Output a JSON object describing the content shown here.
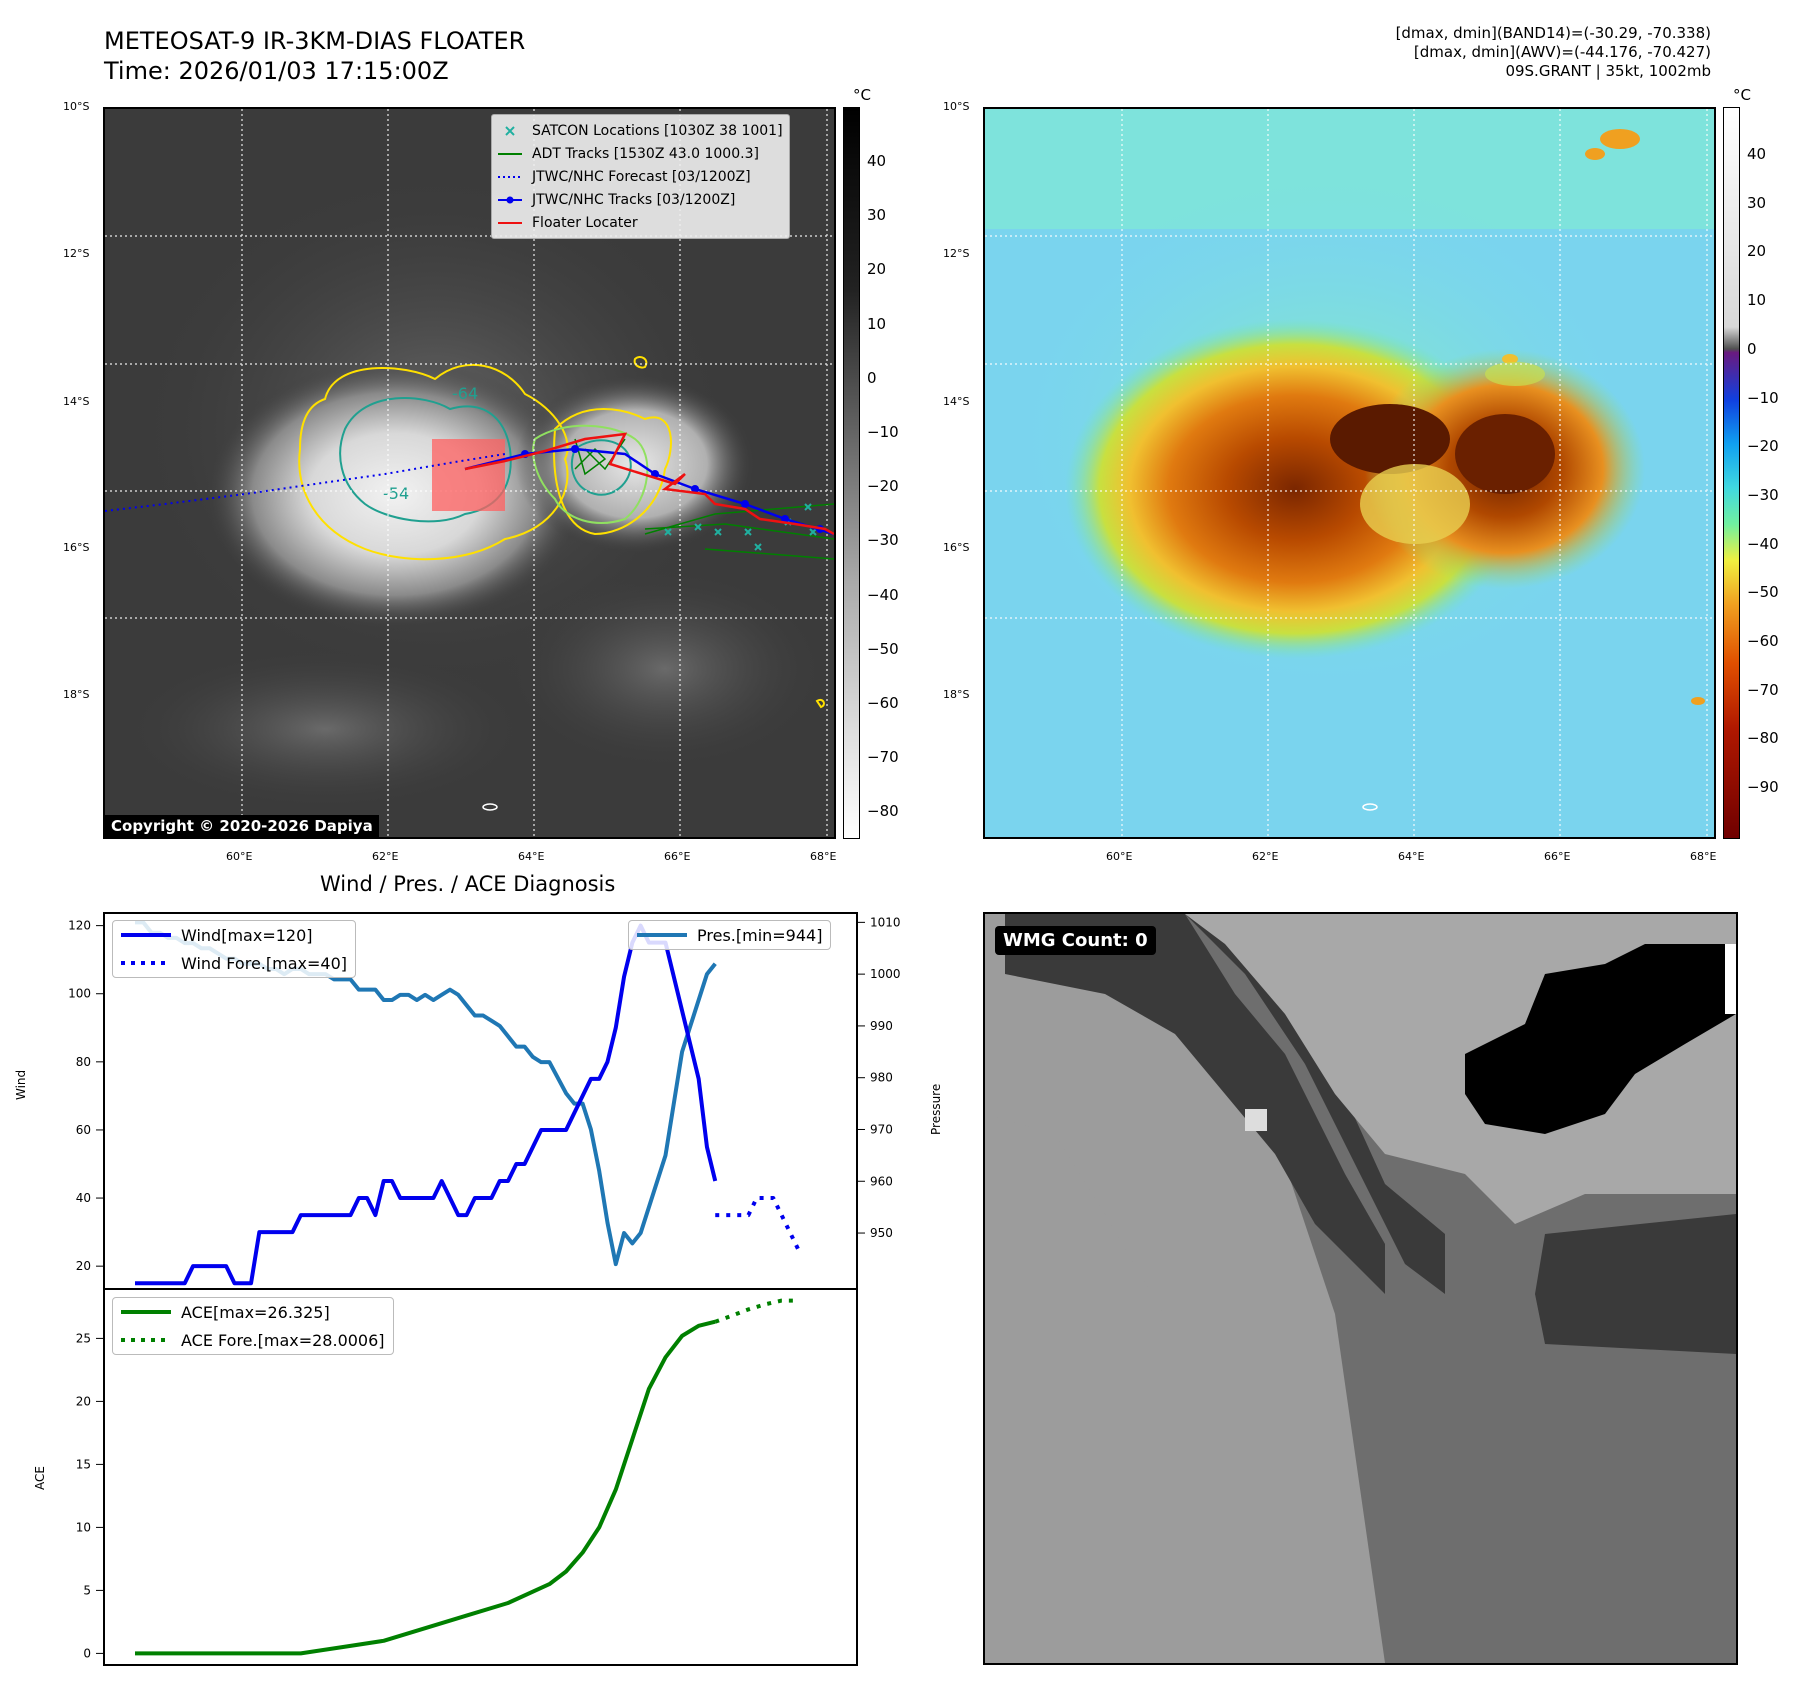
{
  "header": {
    "title_line1": "METEOSAT-9 IR-3KM-DIAS FLOATER",
    "title_line2": "Time: 2026/01/03 17:15:00Z",
    "info_line1": "[dmax, dmin](BAND14)=(-30.29, -70.338)",
    "info_line2": "[dmax, dmin](AWV)=(-44.176, -70.427)",
    "info_line3": "09S.GRANT | 35kt, 1002mb"
  },
  "map": {
    "lat_labels": [
      "10°S",
      "12°S",
      "14°S",
      "16°S",
      "18°S"
    ],
    "lon_labels": [
      "60°E",
      "62°E",
      "64°E",
      "66°E",
      "68°E"
    ],
    "copyright": "Copyright © 2020-2026 Dapiya",
    "contour_labels": [
      "-64",
      "-54"
    ],
    "legend": {
      "satcon": "SATCON Locations [1030Z 38 1001]",
      "adt": "ADT Tracks [1530Z 43.0 1000.3]",
      "forecast": "JTWC/NHC Forecast [03/1200Z]",
      "tracks": "JTWC/NHC Tracks [03/1200Z]",
      "floater": "Floater Locater"
    },
    "colorbar_unit": "°C",
    "ir_colorbar_ticks": [
      "40",
      "30",
      "20",
      "10",
      "0",
      "−10",
      "−20",
      "−30",
      "−40",
      "−50",
      "−60",
      "−70",
      "−80"
    ],
    "enh_colorbar_ticks": [
      "40",
      "30",
      "20",
      "10",
      "0",
      "−10",
      "−20",
      "−30",
      "−40",
      "−50",
      "−60",
      "−70",
      "−80",
      "−90"
    ]
  },
  "wmg": {
    "label": "WMG Count: 0"
  },
  "colors": {
    "wind": "#0000ee",
    "pressure": "#1f77b4",
    "ace": "#008000",
    "track_red": "#ee1111",
    "contour_yellow": "#ffe000",
    "contour_teal": "#20a090"
  },
  "chart_data": [
    {
      "type": "line",
      "title": "Wind / Pres. / ACE Diagnosis",
      "ylabel": "Wind",
      "y2label": "Pressure",
      "ylim": [
        13,
        124
      ],
      "y2lim": [
        939,
        1012
      ],
      "yticks": [
        20,
        40,
        60,
        80,
        100,
        120
      ],
      "y2ticks": [
        950,
        960,
        970,
        980,
        990,
        1000,
        1010
      ],
      "series": [
        {
          "name": "Wind[max=120]",
          "axis": "left",
          "x": [
            0,
            1,
            2,
            3,
            4,
            5,
            6,
            7,
            8,
            9,
            10,
            11,
            12,
            13,
            14,
            15,
            16,
            17,
            18,
            19,
            20,
            21,
            22,
            23,
            24,
            25,
            26,
            27,
            28,
            29,
            30,
            31,
            32,
            33,
            34,
            35,
            36,
            37,
            38,
            39,
            40,
            41,
            42,
            43,
            44,
            45,
            46,
            47,
            48,
            49,
            50,
            51,
            52,
            53,
            54,
            55,
            56,
            57,
            58,
            59,
            60,
            61,
            62,
            63,
            64,
            65,
            66,
            67,
            68,
            69,
            70
          ],
          "values": [
            15,
            15,
            15,
            15,
            15,
            15,
            15,
            20,
            20,
            20,
            20,
            20,
            15,
            15,
            15,
            30,
            30,
            30,
            30,
            30,
            35,
            35,
            35,
            35,
            35,
            35,
            35,
            40,
            40,
            35,
            45,
            45,
            40,
            40,
            40,
            40,
            40,
            45,
            40,
            35,
            35,
            40,
            40,
            40,
            45,
            45,
            50,
            50,
            55,
            60,
            60,
            60,
            60,
            65,
            70,
            75,
            75,
            80,
            90,
            105,
            115,
            120,
            115,
            115,
            115,
            105,
            95,
            85,
            75,
            55,
            45
          ]
        },
        {
          "name": "Wind Fore.[max=40]",
          "axis": "left",
          "style": "dotted",
          "x": [
            70,
            71,
            72,
            73,
            74,
            75,
            76,
            77,
            78,
            79,
            80
          ],
          "values": [
            35,
            35,
            35,
            35,
            35,
            40,
            40,
            40,
            35,
            30,
            25
          ]
        },
        {
          "name": "Pres.[min=944]",
          "axis": "right",
          "x": [
            0,
            1,
            2,
            3,
            4,
            5,
            6,
            7,
            8,
            9,
            10,
            11,
            12,
            13,
            14,
            15,
            16,
            17,
            18,
            19,
            20,
            21,
            22,
            23,
            24,
            25,
            26,
            27,
            28,
            29,
            30,
            31,
            32,
            33,
            34,
            35,
            36,
            37,
            38,
            39,
            40,
            41,
            42,
            43,
            44,
            45,
            46,
            47,
            48,
            49,
            50,
            51,
            52,
            53,
            54,
            55,
            56,
            57,
            58,
            59,
            60,
            61,
            62,
            63,
            64,
            65,
            66,
            67,
            68,
            69,
            70
          ],
          "values": [
            1010,
            1010,
            1008,
            1008,
            1007,
            1007,
            1006,
            1006,
            1005,
            1005,
            1004,
            1003,
            1003,
            1002,
            1002,
            1002,
            1001,
            1001,
            1000,
            1001,
            1001,
            1000,
            1000,
            1000,
            999,
            999,
            999,
            997,
            997,
            997,
            995,
            995,
            996,
            996,
            995,
            996,
            995,
            996,
            997,
            996,
            994,
            992,
            992,
            991,
            990,
            988,
            986,
            986,
            984,
            983,
            983,
            980,
            977,
            975,
            975,
            970,
            962,
            952,
            944,
            950,
            948,
            950,
            955,
            960,
            965,
            975,
            985,
            990,
            995,
            1000,
            1002
          ]
        }
      ]
    },
    {
      "type": "line",
      "ylabel": "ACE",
      "ylim": [
        -1,
        29
      ],
      "yticks": [
        0,
        5,
        10,
        15,
        20,
        25
      ],
      "series": [
        {
          "name": "ACE[max=26.325]",
          "x": [
            0,
            5,
            10,
            15,
            20,
            25,
            30,
            35,
            40,
            45,
            50,
            52,
            54,
            56,
            58,
            60,
            62,
            64,
            66,
            68,
            70
          ],
          "values": [
            0,
            0,
            0,
            0,
            0,
            0.5,
            1.0,
            2.0,
            3.0,
            4.0,
            5.5,
            6.5,
            8.0,
            10,
            13,
            17,
            21,
            23.5,
            25.2,
            26.0,
            26.325
          ]
        },
        {
          "name": "ACE Fore.[max=28.0006]",
          "style": "dotted",
          "x": [
            70,
            72,
            74,
            76,
            78,
            80
          ],
          "values": [
            26.325,
            26.8,
            27.3,
            27.7,
            28.0,
            28.0006
          ]
        }
      ]
    }
  ]
}
